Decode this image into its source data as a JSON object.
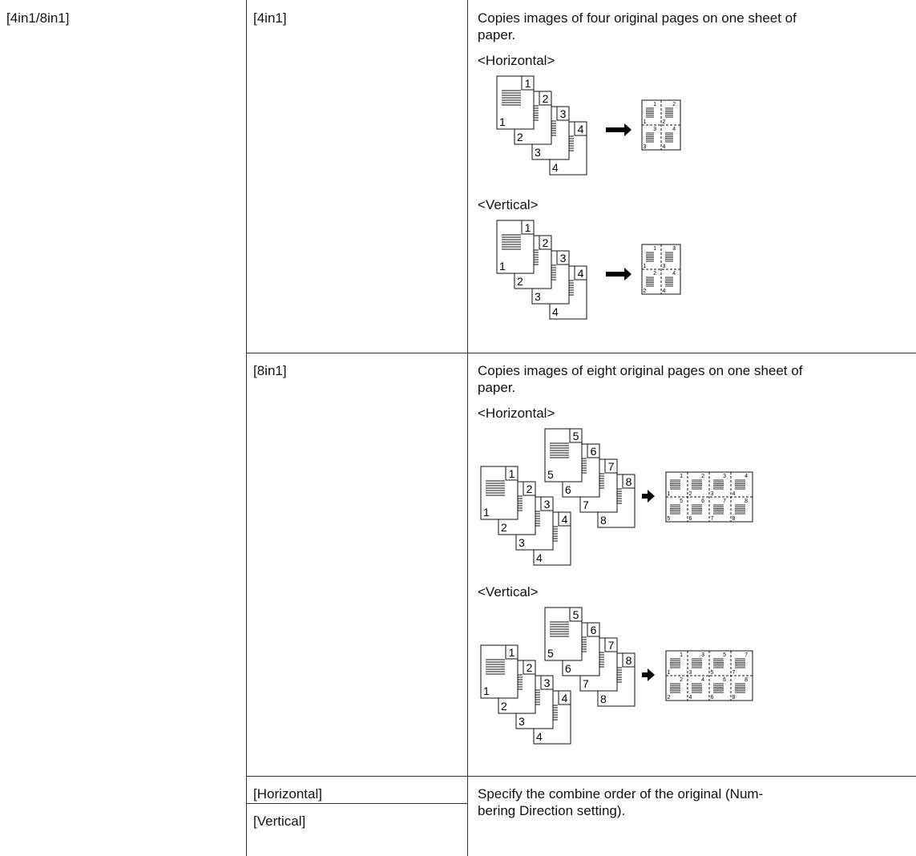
{
  "setting": "[4in1/8in1]",
  "options": [
    {
      "name": "[4in1]",
      "description": "Copies images of four original pages on one sheet of paper.",
      "diagrams": [
        {
          "caption": "<Horizontal>",
          "pages": [
            "1",
            "2",
            "3",
            "4"
          ],
          "sheet": [
            [
              "1",
              "2"
            ],
            [
              "3",
              "4"
            ]
          ]
        },
        {
          "caption": "<Vertical>",
          "pages": [
            "1",
            "2",
            "3",
            "4"
          ],
          "sheet": [
            [
              "1",
              "3"
            ],
            [
              "2",
              "4"
            ]
          ]
        }
      ]
    },
    {
      "name": "[8in1]",
      "description": "Copies images of eight original pages on one sheet of paper.",
      "diagrams": [
        {
          "caption": "<Horizontal>",
          "pages": [
            "1",
            "2",
            "3",
            "4",
            "5",
            "6",
            "7",
            "8"
          ],
          "sheet": [
            [
              "1",
              "2",
              "3",
              "4"
            ],
            [
              "5",
              "6",
              "7",
              "8"
            ]
          ]
        },
        {
          "caption": "<Vertical>",
          "pages": [
            "1",
            "2",
            "3",
            "4",
            "5",
            "6",
            "7",
            "8"
          ],
          "sheet": [
            [
              "1",
              "3",
              "5",
              "7"
            ],
            [
              "2",
              "4",
              "6",
              "8"
            ]
          ]
        }
      ]
    }
  ],
  "direction": {
    "names": [
      "[Horizontal]",
      "[Vertical]"
    ],
    "description": [
      "Specify the combine order of the original (Num-",
      "bering Direction setting)."
    ]
  }
}
